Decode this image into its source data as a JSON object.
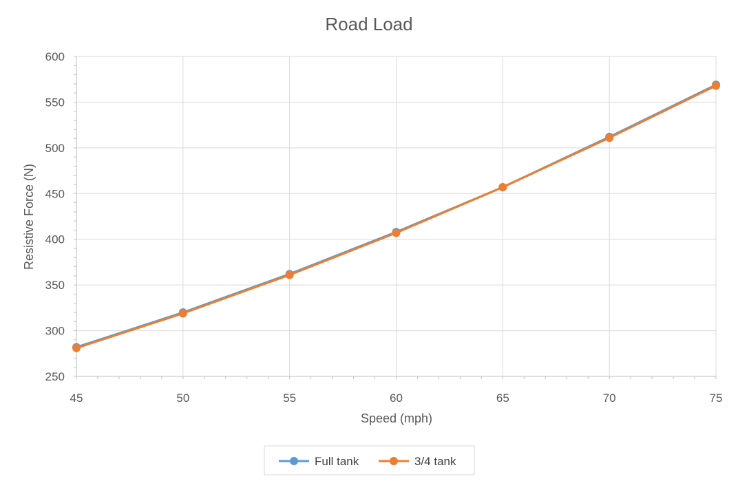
{
  "chart_data": {
    "type": "line",
    "title": "Road Load",
    "xlabel": "Speed (mph)",
    "ylabel": "Resistive Force (N)",
    "x": [
      45,
      50,
      55,
      60,
      65,
      70,
      75
    ],
    "xlim": [
      45,
      75
    ],
    "ylim": [
      250,
      600
    ],
    "x_ticks": [
      "45",
      "50",
      "55",
      "60",
      "65",
      "70",
      "75"
    ],
    "y_ticks": [
      "250",
      "300",
      "350",
      "400",
      "450",
      "500",
      "550",
      "600"
    ],
    "grid": true,
    "legend_position": "bottom",
    "series": [
      {
        "name": "Full tank",
        "color": "#5B9BD5",
        "values": [
          282,
          320,
          362,
          408,
          457,
          512,
          569
        ]
      },
      {
        "name": "3/4 tank",
        "color": "#ED7D31",
        "values": [
          281,
          319,
          361,
          407,
          457,
          511,
          568
        ]
      }
    ]
  }
}
